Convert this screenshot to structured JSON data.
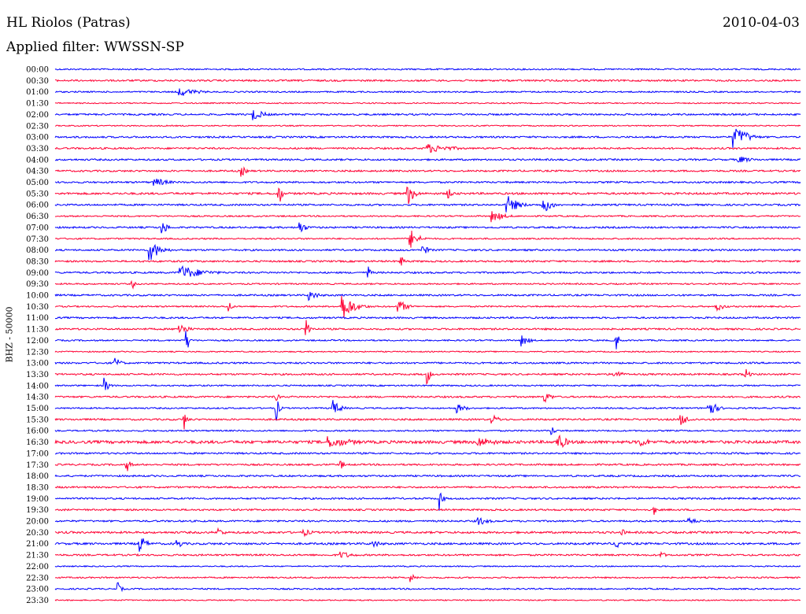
{
  "header": {
    "station": "HL Riolos (Patras)",
    "date": "2010-04-03",
    "filter_label": "Applied filter: WWSSN-SP"
  },
  "chart_data": {
    "type": "line",
    "title": "HL Riolos (Patras)",
    "date": "2010-04-03",
    "filter": "Applied filter: WWSSN-SP",
    "ylabel": "BHZ - 50000",
    "grid": false,
    "colors": {
      "even_rows": "#0000ff",
      "odd_rows": "#ff0033"
    },
    "x_minutes": [
      0,
      30
    ],
    "time_labels": [
      "00:00",
      "00:30",
      "01:00",
      "01:30",
      "02:00",
      "02:30",
      "03:00",
      "03:30",
      "04:00",
      "04:30",
      "05:00",
      "05:30",
      "06:00",
      "06:30",
      "07:00",
      "07:30",
      "08:00",
      "08:30",
      "09:00",
      "09:30",
      "10:00",
      "10:30",
      "11:00",
      "11:30",
      "12:00",
      "12:30",
      "13:00",
      "13:30",
      "14:00",
      "14:30",
      "15:00",
      "15:30",
      "16:00",
      "16:30",
      "17:00",
      "17:30",
      "18:00",
      "18:30",
      "19:00",
      "19:30",
      "20:00",
      "20:30",
      "21:00",
      "21:30",
      "22:00",
      "22:30",
      "23:00",
      "23:30"
    ],
    "noise_level": [
      0.5,
      0.6,
      0.5,
      0.4,
      0.6,
      0.4,
      0.6,
      0.6,
      0.6,
      0.6,
      0.6,
      0.7,
      0.6,
      0.5,
      0.6,
      0.5,
      0.6,
      0.6,
      0.6,
      0.5,
      0.6,
      0.5,
      0.6,
      0.6,
      0.5,
      0.4,
      0.6,
      0.6,
      0.5,
      0.6,
      0.5,
      0.6,
      0.5,
      1.0,
      0.6,
      0.6,
      0.6,
      0.6,
      0.6,
      0.6,
      0.6,
      0.7,
      0.7,
      0.6,
      0.4,
      0.5,
      0.5,
      0.4
    ],
    "events": [
      {
        "row": 2,
        "minute": 5.0,
        "amplitude": 1.2,
        "duration": 2.0
      },
      {
        "row": 4,
        "minute": 8.0,
        "amplitude": 1.5,
        "duration": 1.2
      },
      {
        "row": 6,
        "minute": 27.3,
        "amplitude": 3.0,
        "duration": 0.8
      },
      {
        "row": 6,
        "minute": 27.6,
        "amplitude": 2.0,
        "duration": 1.2
      },
      {
        "row": 7,
        "minute": 15.0,
        "amplitude": 1.2,
        "duration": 2.8
      },
      {
        "row": 8,
        "minute": 27.5,
        "amplitude": 1.0,
        "duration": 1.5
      },
      {
        "row": 9,
        "minute": 7.5,
        "amplitude": 1.5,
        "duration": 0.5
      },
      {
        "row": 10,
        "minute": 4.0,
        "amplitude": 1.2,
        "duration": 1.5
      },
      {
        "row": 11,
        "minute": 9.0,
        "amplitude": 4.0,
        "duration": 0.3
      },
      {
        "row": 11,
        "minute": 14.2,
        "amplitude": 3.0,
        "duration": 0.7
      },
      {
        "row": 11,
        "minute": 15.8,
        "amplitude": 1.5,
        "duration": 0.6
      },
      {
        "row": 12,
        "minute": 18.2,
        "amplitude": 2.5,
        "duration": 1.2
      },
      {
        "row": 12,
        "minute": 19.6,
        "amplitude": 2.5,
        "duration": 1.0
      },
      {
        "row": 13,
        "minute": 17.6,
        "amplitude": 1.5,
        "duration": 1.3
      },
      {
        "row": 14,
        "minute": 4.3,
        "amplitude": 2.0,
        "duration": 0.6
      },
      {
        "row": 14,
        "minute": 9.8,
        "amplitude": 2.0,
        "duration": 0.7
      },
      {
        "row": 15,
        "minute": 14.3,
        "amplitude": 2.5,
        "duration": 0.9
      },
      {
        "row": 16,
        "minute": 3.8,
        "amplitude": 3.0,
        "duration": 1.1
      },
      {
        "row": 16,
        "minute": 14.8,
        "amplitude": 1.5,
        "duration": 0.6
      },
      {
        "row": 17,
        "minute": 13.9,
        "amplitude": 1.5,
        "duration": 0.5
      },
      {
        "row": 18,
        "minute": 5.0,
        "amplitude": 2.0,
        "duration": 2.5
      },
      {
        "row": 18,
        "minute": 12.6,
        "amplitude": 2.0,
        "duration": 0.3
      },
      {
        "row": 19,
        "minute": 3.1,
        "amplitude": 1.5,
        "duration": 0.3
      },
      {
        "row": 20,
        "minute": 10.2,
        "amplitude": 1.5,
        "duration": 1.0
      },
      {
        "row": 21,
        "minute": 7.0,
        "amplitude": 1.8,
        "duration": 0.3
      },
      {
        "row": 21,
        "minute": 11.5,
        "amplitude": 4.0,
        "duration": 1.3
      },
      {
        "row": 21,
        "minute": 13.8,
        "amplitude": 2.0,
        "duration": 0.9
      },
      {
        "row": 21,
        "minute": 26.6,
        "amplitude": 1.5,
        "duration": 0.8
      },
      {
        "row": 23,
        "minute": 5.0,
        "amplitude": 1.8,
        "duration": 0.9
      },
      {
        "row": 23,
        "minute": 10.1,
        "amplitude": 3.5,
        "duration": 0.4
      },
      {
        "row": 24,
        "minute": 5.3,
        "amplitude": 3.0,
        "duration": 0.3
      },
      {
        "row": 24,
        "minute": 18.8,
        "amplitude": 1.5,
        "duration": 0.8
      },
      {
        "row": 24,
        "minute": 22.6,
        "amplitude": 2.5,
        "duration": 0.3
      },
      {
        "row": 26,
        "minute": 2.4,
        "amplitude": 1.5,
        "duration": 0.7
      },
      {
        "row": 27,
        "minute": 15.0,
        "amplitude": 2.5,
        "duration": 0.3
      },
      {
        "row": 27,
        "minute": 22.5,
        "amplitude": 1.5,
        "duration": 0.8
      },
      {
        "row": 27,
        "minute": 27.8,
        "amplitude": 1.8,
        "duration": 0.4
      },
      {
        "row": 28,
        "minute": 2.0,
        "amplitude": 2.0,
        "duration": 0.5
      },
      {
        "row": 29,
        "minute": 8.9,
        "amplitude": 1.5,
        "duration": 0.3
      },
      {
        "row": 29,
        "minute": 19.7,
        "amplitude": 1.5,
        "duration": 0.8
      },
      {
        "row": 30,
        "minute": 8.9,
        "amplitude": 3.5,
        "duration": 0.3
      },
      {
        "row": 30,
        "minute": 11.2,
        "amplitude": 2.0,
        "duration": 0.8
      },
      {
        "row": 30,
        "minute": 16.2,
        "amplitude": 1.2,
        "duration": 1.0
      },
      {
        "row": 30,
        "minute": 26.3,
        "amplitude": 2.5,
        "duration": 0.8
      },
      {
        "row": 31,
        "minute": 5.2,
        "amplitude": 2.5,
        "duration": 0.3
      },
      {
        "row": 31,
        "minute": 17.6,
        "amplitude": 1.2,
        "duration": 0.9
      },
      {
        "row": 31,
        "minute": 25.2,
        "amplitude": 1.5,
        "duration": 1.0
      },
      {
        "row": 32,
        "minute": 20.0,
        "amplitude": 1.2,
        "duration": 0.4
      },
      {
        "row": 33,
        "minute": 11.0,
        "amplitude": 1.5,
        "duration": 3.0
      },
      {
        "row": 33,
        "minute": 17.0,
        "amplitude": 1.5,
        "duration": 2.0
      },
      {
        "row": 33,
        "minute": 20.2,
        "amplitude": 2.5,
        "duration": 1.0
      },
      {
        "row": 33,
        "minute": 23.5,
        "amplitude": 1.5,
        "duration": 1.2
      },
      {
        "row": 35,
        "minute": 2.9,
        "amplitude": 1.8,
        "duration": 0.4
      },
      {
        "row": 35,
        "minute": 11.5,
        "amplitude": 1.5,
        "duration": 0.3
      },
      {
        "row": 38,
        "minute": 15.5,
        "amplitude": 3.0,
        "duration": 0.3
      },
      {
        "row": 39,
        "minute": 24.1,
        "amplitude": 1.5,
        "duration": 0.3
      },
      {
        "row": 40,
        "minute": 17.0,
        "amplitude": 1.2,
        "duration": 1.2
      },
      {
        "row": 40,
        "minute": 25.5,
        "amplitude": 1.0,
        "duration": 1.0
      },
      {
        "row": 41,
        "minute": 6.6,
        "amplitude": 1.2,
        "duration": 0.6
      },
      {
        "row": 41,
        "minute": 10.0,
        "amplitude": 1.0,
        "duration": 1.0
      },
      {
        "row": 41,
        "minute": 22.8,
        "amplitude": 1.2,
        "duration": 0.4
      },
      {
        "row": 42,
        "minute": 3.4,
        "amplitude": 2.5,
        "duration": 0.7
      },
      {
        "row": 42,
        "minute": 4.9,
        "amplitude": 1.5,
        "duration": 0.6
      },
      {
        "row": 42,
        "minute": 12.8,
        "amplitude": 1.0,
        "duration": 1.0
      },
      {
        "row": 42,
        "minute": 22.6,
        "amplitude": 1.5,
        "duration": 0.5
      },
      {
        "row": 43,
        "minute": 11.5,
        "amplitude": 1.0,
        "duration": 1.4
      },
      {
        "row": 43,
        "minute": 24.4,
        "amplitude": 1.2,
        "duration": 0.4
      },
      {
        "row": 45,
        "minute": 14.3,
        "amplitude": 1.2,
        "duration": 0.6
      },
      {
        "row": 46,
        "minute": 2.5,
        "amplitude": 2.0,
        "duration": 0.4
      }
    ]
  }
}
